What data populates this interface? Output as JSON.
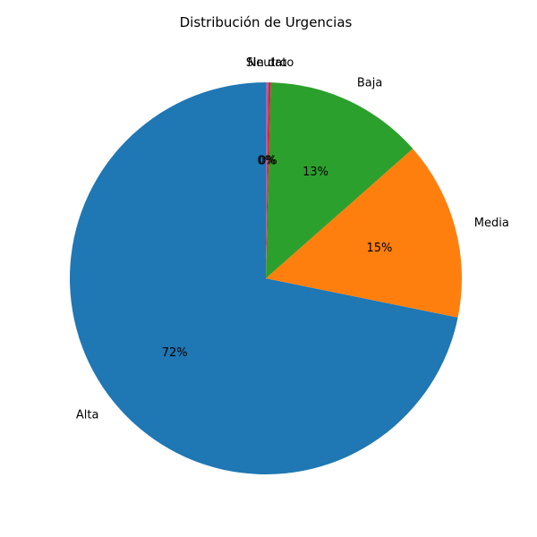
{
  "chart_data": {
    "type": "pie",
    "title": "Distribución de Urgencias",
    "start_angle_deg": 90,
    "direction": "counterclockwise",
    "slices": [
      {
        "label": "Alta",
        "value": 71.8,
        "pct_label": "72%",
        "color": "#1f77b4"
      },
      {
        "label": "Media",
        "value": 14.7,
        "pct_label": "15%",
        "color": "#ff7f0e"
      },
      {
        "label": "Baja",
        "value": 13.1,
        "pct_label": "13%",
        "color": "#2ca02c"
      },
      {
        "label": "Sin dato",
        "value": 0.2,
        "pct_label": "0%",
        "color": "#d62728"
      },
      {
        "label": "Neutro",
        "value": 0.2,
        "pct_label": "0%",
        "color": "#9467bd"
      }
    ]
  }
}
